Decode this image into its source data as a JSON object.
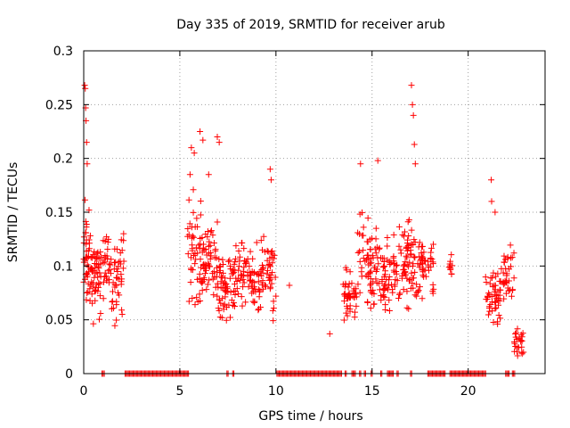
{
  "chart_data": {
    "type": "scatter",
    "title": "Day 335 of 2019, SRMTID for receiver arub",
    "xlabel": "GPS time / hours",
    "ylabel": "SRMTID / TECUs",
    "xlim": [
      0,
      24
    ],
    "ylim": [
      0,
      0.3
    ],
    "grid": true,
    "marker": "+",
    "color": "#ff0000",
    "x_ticks": [
      {
        "value": 0,
        "label": "0"
      },
      {
        "value": 5,
        "label": "5"
      },
      {
        "value": 10,
        "label": "10"
      },
      {
        "value": 15,
        "label": "15"
      },
      {
        "value": 20,
        "label": "20"
      }
    ],
    "y_ticks": [
      {
        "value": 0,
        "label": "0"
      },
      {
        "value": 0.05,
        "label": "0.05"
      },
      {
        "value": 0.1,
        "label": "0.1"
      },
      {
        "value": 0.15,
        "label": "0.15"
      },
      {
        "value": 0.2,
        "label": "0.2"
      },
      {
        "value": 0.25,
        "label": "0.25"
      },
      {
        "value": 0.3,
        "label": "0.3"
      }
    ],
    "clusters": [
      {
        "x_range": [
          0.0,
          0.3
        ],
        "y_range": [
          0.05,
          0.175
        ],
        "count": 40
      },
      {
        "x_range": [
          0.3,
          0.9
        ],
        "y_range": [
          0.04,
          0.145
        ],
        "count": 55
      },
      {
        "x_range": [
          1.0,
          1.5
        ],
        "y_range": [
          0.055,
          0.14
        ],
        "count": 30
      },
      {
        "x_range": [
          1.5,
          2.1
        ],
        "y_range": [
          0.035,
          0.145
        ],
        "count": 40
      },
      {
        "x_range": [
          5.4,
          6.2
        ],
        "y_range": [
          0.035,
          0.19
        ],
        "count": 55
      },
      {
        "x_range": [
          6.2,
          7.0
        ],
        "y_range": [
          0.05,
          0.16
        ],
        "count": 55
      },
      {
        "x_range": [
          7.0,
          7.8
        ],
        "y_range": [
          0.035,
          0.13
        ],
        "count": 55
      },
      {
        "x_range": [
          7.8,
          8.8
        ],
        "y_range": [
          0.05,
          0.135
        ],
        "count": 60
      },
      {
        "x_range": [
          8.8,
          10.0
        ],
        "y_range": [
          0.035,
          0.14
        ],
        "count": 70
      },
      {
        "x_range": [
          13.4,
          14.2
        ],
        "y_range": [
          0.03,
          0.11
        ],
        "count": 45
      },
      {
        "x_range": [
          14.2,
          15.2
        ],
        "y_range": [
          0.05,
          0.16
        ],
        "count": 60
      },
      {
        "x_range": [
          15.2,
          16.4
        ],
        "y_range": [
          0.04,
          0.14
        ],
        "count": 70
      },
      {
        "x_range": [
          16.4,
          17.4
        ],
        "y_range": [
          0.05,
          0.16
        ],
        "count": 70
      },
      {
        "x_range": [
          17.4,
          18.2
        ],
        "y_range": [
          0.06,
          0.14
        ],
        "count": 45
      },
      {
        "x_range": [
          19.0,
          19.2
        ],
        "y_range": [
          0.08,
          0.12
        ],
        "count": 10
      },
      {
        "x_range": [
          20.9,
          21.7
        ],
        "y_range": [
          0.03,
          0.11
        ],
        "count": 50
      },
      {
        "x_range": [
          21.7,
          22.4
        ],
        "y_range": [
          0.05,
          0.13
        ],
        "count": 35
      },
      {
        "x_range": [
          22.4,
          22.9
        ],
        "y_range": [
          0.015,
          0.045
        ],
        "count": 25
      }
    ],
    "outliers": [
      {
        "x": 0.05,
        "y": 0.268
      },
      {
        "x": 0.08,
        "y": 0.265
      },
      {
        "x": 0.1,
        "y": 0.247
      },
      {
        "x": 0.12,
        "y": 0.235
      },
      {
        "x": 0.15,
        "y": 0.215
      },
      {
        "x": 0.18,
        "y": 0.195
      },
      {
        "x": 5.6,
        "y": 0.21
      },
      {
        "x": 5.75,
        "y": 0.205
      },
      {
        "x": 6.05,
        "y": 0.225
      },
      {
        "x": 6.2,
        "y": 0.217
      },
      {
        "x": 6.5,
        "y": 0.185
      },
      {
        "x": 6.95,
        "y": 0.22
      },
      {
        "x": 7.05,
        "y": 0.215
      },
      {
        "x": 9.7,
        "y": 0.19
      },
      {
        "x": 9.75,
        "y": 0.18
      },
      {
        "x": 10.7,
        "y": 0.082
      },
      {
        "x": 12.8,
        "y": 0.037
      },
      {
        "x": 14.4,
        "y": 0.195
      },
      {
        "x": 15.3,
        "y": 0.198
      },
      {
        "x": 17.05,
        "y": 0.268
      },
      {
        "x": 17.1,
        "y": 0.25
      },
      {
        "x": 17.15,
        "y": 0.24
      },
      {
        "x": 17.2,
        "y": 0.213
      },
      {
        "x": 17.25,
        "y": 0.195
      },
      {
        "x": 21.2,
        "y": 0.18
      },
      {
        "x": 21.22,
        "y": 0.16
      },
      {
        "x": 21.4,
        "y": 0.15
      }
    ],
    "zero_segments": [
      [
        0.95,
        1.1
      ],
      [
        2.15,
        5.45
      ],
      [
        7.45,
        7.55
      ],
      [
        7.75,
        7.85
      ],
      [
        10.05,
        13.45
      ],
      [
        13.6,
        13.7
      ],
      [
        13.95,
        14.15
      ],
      [
        14.35,
        14.45
      ],
      [
        14.6,
        14.7
      ],
      [
        14.95,
        15.05
      ],
      [
        15.45,
        15.55
      ],
      [
        15.8,
        16.1
      ],
      [
        16.3,
        16.4
      ],
      [
        17.0,
        17.1
      ],
      [
        17.9,
        18.8
      ],
      [
        19.05,
        20.95
      ],
      [
        21.95,
        22.15
      ],
      [
        22.3,
        22.45
      ]
    ]
  }
}
